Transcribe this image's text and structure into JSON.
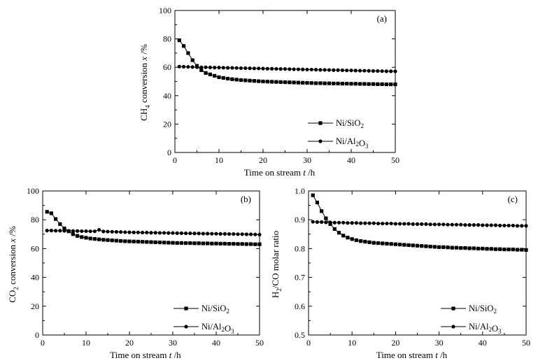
{
  "chart_data": [
    {
      "id": "a",
      "type": "line",
      "panel_label": "(a)",
      "xlabel": "Time on stream",
      "xunit_var": "t",
      "xunit": " /h",
      "ylabel_base": "CH",
      "ylabel_sub": "4",
      "ylabel_rest": " conversion",
      "yunit_var": "x",
      "yunit": " /%",
      "xlim": [
        0,
        50
      ],
      "ylim": [
        0,
        100
      ],
      "xticks": [
        0,
        10,
        20,
        30,
        40,
        50
      ],
      "yticks": [
        0,
        20,
        40,
        60,
        80,
        100
      ],
      "ytick_labels": [
        "0",
        "20",
        "40",
        "60",
        "80",
        "100"
      ],
      "legend_position": "lower-right",
      "series": [
        {
          "name": "Ni/SiO2",
          "label_parts": [
            [
              "Ni/SiO",
              false
            ],
            [
              "2",
              true
            ]
          ],
          "marker": "square",
          "x": [
            1,
            2,
            3,
            4,
            5,
            6,
            7,
            8,
            9,
            10,
            11,
            12,
            13,
            14,
            15,
            16,
            17,
            18,
            19,
            20,
            21,
            22,
            23,
            24,
            25,
            26,
            27,
            28,
            29,
            30,
            31,
            32,
            33,
            34,
            35,
            36,
            37,
            38,
            39,
            40,
            41,
            42,
            43,
            44,
            45,
            46,
            47,
            48,
            49,
            50
          ],
          "y": [
            79,
            75,
            70,
            65,
            61,
            58,
            56,
            55,
            54,
            53,
            52.5,
            52,
            51.6,
            51.3,
            51,
            50.8,
            50.6,
            50.4,
            50.2,
            50,
            49.9,
            49.8,
            49.7,
            49.6,
            49.5,
            49.4,
            49.3,
            49.2,
            49.1,
            49,
            48.9,
            48.8,
            48.8,
            48.7,
            48.7,
            48.6,
            48.6,
            48.5,
            48.5,
            48.4,
            48.4,
            48.3,
            48.3,
            48.2,
            48.2,
            48.1,
            48.1,
            48,
            48,
            48
          ]
        },
        {
          "name": "Ni/Al2O3",
          "label_parts": [
            [
              "Ni/Al",
              false
            ],
            [
              "2",
              true
            ],
            [
              "O",
              false
            ],
            [
              "3",
              true
            ]
          ],
          "marker": "circle",
          "x": [
            1,
            2,
            3,
            4,
            5,
            6,
            7,
            8,
            9,
            10,
            11,
            12,
            13,
            14,
            15,
            16,
            17,
            18,
            19,
            20,
            21,
            22,
            23,
            24,
            25,
            26,
            27,
            28,
            29,
            30,
            31,
            32,
            33,
            34,
            35,
            36,
            37,
            38,
            39,
            40,
            41,
            42,
            43,
            44,
            45,
            46,
            47,
            48,
            49,
            50
          ],
          "y": [
            60.5,
            60.4,
            60.3,
            60.2,
            60.1,
            60,
            60,
            59.9,
            59.8,
            59.8,
            59.7,
            59.6,
            59.6,
            59.5,
            59.4,
            59.4,
            59.3,
            59.2,
            59.2,
            59.1,
            59,
            59,
            58.9,
            58.8,
            58.8,
            58.7,
            58.6,
            58.6,
            58.5,
            58.4,
            58.4,
            58.3,
            58.2,
            58.2,
            58.1,
            58,
            58,
            57.9,
            57.8,
            57.8,
            57.7,
            57.6,
            57.6,
            57.5,
            57.4,
            57.4,
            57.3,
            57.2,
            57.2,
            57.1
          ]
        }
      ]
    },
    {
      "id": "b",
      "type": "line",
      "panel_label": "(b)",
      "xlabel": "Time on stream",
      "xunit_var": "t",
      "xunit": " /h",
      "ylabel_base": "CO",
      "ylabel_sub": "2",
      "ylabel_rest": " conversion",
      "yunit_var": "x",
      "yunit": " /%",
      "xlim": [
        0,
        50
      ],
      "ylim": [
        0,
        100
      ],
      "xticks": [
        0,
        10,
        20,
        30,
        40,
        50
      ],
      "yticks": [
        0,
        20,
        40,
        60,
        80,
        100
      ],
      "ytick_labels": [
        "0",
        "20",
        "40",
        "60",
        "80",
        "100"
      ],
      "legend_position": "lower-right",
      "series": [
        {
          "name": "Ni/SiO2",
          "label_parts": [
            [
              "Ni/SiO",
              false
            ],
            [
              "2",
              true
            ]
          ],
          "marker": "square",
          "x": [
            1,
            2,
            3,
            4,
            5,
            6,
            7,
            8,
            9,
            10,
            11,
            12,
            13,
            14,
            15,
            16,
            17,
            18,
            19,
            20,
            21,
            22,
            23,
            24,
            25,
            26,
            27,
            28,
            29,
            30,
            31,
            32,
            33,
            34,
            35,
            36,
            37,
            38,
            39,
            40,
            41,
            42,
            43,
            44,
            45,
            46,
            47,
            48,
            49,
            50
          ],
          "y": [
            85.5,
            84.5,
            80.5,
            77,
            74,
            72,
            70,
            68.8,
            68,
            67.5,
            67,
            66.7,
            66.4,
            66.1,
            65.9,
            65.7,
            65.5,
            65.3,
            65.1,
            65,
            64.9,
            64.8,
            64.7,
            64.6,
            64.5,
            64.4,
            64.3,
            64.2,
            64.1,
            64,
            63.9,
            63.9,
            63.8,
            63.8,
            63.7,
            63.7,
            63.6,
            63.6,
            63.5,
            63.5,
            63.4,
            63.4,
            63.3,
            63.3,
            63.2,
            63.2,
            63.1,
            63.1,
            63,
            63
          ]
        },
        {
          "name": "Ni/Al2O3",
          "label_parts": [
            [
              "Ni/Al",
              false
            ],
            [
              "2",
              true
            ],
            [
              "O",
              false
            ],
            [
              "3",
              true
            ]
          ],
          "marker": "circle",
          "x": [
            1,
            2,
            3,
            4,
            5,
            6,
            7,
            8,
            9,
            10,
            11,
            12,
            13,
            14,
            15,
            16,
            17,
            18,
            19,
            20,
            21,
            22,
            23,
            24,
            25,
            26,
            27,
            28,
            29,
            30,
            31,
            32,
            33,
            34,
            35,
            36,
            37,
            38,
            39,
            40,
            41,
            42,
            43,
            44,
            45,
            46,
            47,
            48,
            49,
            50
          ],
          "y": [
            72.5,
            72.5,
            72.4,
            72.4,
            72.3,
            72.3,
            72.2,
            72.2,
            72.1,
            72.1,
            72,
            72,
            73,
            71.9,
            71.8,
            71.7,
            71.6,
            71.5,
            71.4,
            71.3,
            71.2,
            71.2,
            71.1,
            71.1,
            71,
            71,
            70.9,
            70.9,
            70.8,
            70.8,
            70.7,
            70.7,
            70.6,
            70.6,
            70.5,
            70.5,
            70.4,
            70.4,
            70.3,
            70.3,
            70.2,
            70.2,
            70.1,
            70.1,
            70,
            70,
            69.9,
            69.9,
            69.8,
            69.7
          ]
        }
      ]
    },
    {
      "id": "c",
      "type": "line",
      "panel_label": "(c)",
      "xlabel": "Time on stream",
      "xunit_var": "t",
      "xunit": " /h",
      "ylabel_base": "H",
      "ylabel_sub": "2",
      "ylabel_rest": "/CO molar ratio",
      "yunit_var": "",
      "yunit": "",
      "xlim": [
        0,
        50
      ],
      "ylim": [
        0.5,
        1.0
      ],
      "xticks": [
        0,
        10,
        20,
        30,
        40,
        50
      ],
      "yticks": [
        0.5,
        0.6,
        0.7,
        0.8,
        0.9,
        1.0
      ],
      "ytick_labels": [
        "0.5",
        "0.6",
        "0.7",
        "0.8",
        "0.9",
        "1.0"
      ],
      "legend_position": "lower-right",
      "series": [
        {
          "name": "Ni/SiO2",
          "label_parts": [
            [
              "Ni/SiO",
              false
            ],
            [
              "2",
              true
            ]
          ],
          "marker": "square",
          "x": [
            1,
            2,
            3,
            4,
            5,
            6,
            7,
            8,
            9,
            10,
            11,
            12,
            13,
            14,
            15,
            16,
            17,
            18,
            19,
            20,
            21,
            22,
            23,
            24,
            25,
            26,
            27,
            28,
            29,
            30,
            31,
            32,
            33,
            34,
            35,
            36,
            37,
            38,
            39,
            40,
            41,
            42,
            43,
            44,
            45,
            46,
            47,
            48,
            49,
            50
          ],
          "y": [
            0.985,
            0.96,
            0.93,
            0.905,
            0.885,
            0.868,
            0.855,
            0.845,
            0.838,
            0.833,
            0.829,
            0.826,
            0.824,
            0.822,
            0.82,
            0.819,
            0.818,
            0.817,
            0.816,
            0.815,
            0.814,
            0.813,
            0.812,
            0.811,
            0.81,
            0.809,
            0.808,
            0.807,
            0.806,
            0.805,
            0.805,
            0.804,
            0.803,
            0.803,
            0.802,
            0.802,
            0.801,
            0.801,
            0.8,
            0.8,
            0.799,
            0.799,
            0.798,
            0.798,
            0.797,
            0.797,
            0.797,
            0.796,
            0.796,
            0.795
          ]
        },
        {
          "name": "Ni/Al2O3",
          "label_parts": [
            [
              "Ni/Al",
              false
            ],
            [
              "2",
              true
            ],
            [
              "O",
              false
            ],
            [
              "3",
              true
            ]
          ],
          "marker": "circle",
          "x": [
            1,
            2,
            3,
            4,
            5,
            6,
            7,
            8,
            9,
            10,
            11,
            12,
            13,
            14,
            15,
            16,
            17,
            18,
            19,
            20,
            21,
            22,
            23,
            24,
            25,
            26,
            27,
            28,
            29,
            30,
            31,
            32,
            33,
            34,
            35,
            36,
            37,
            38,
            39,
            40,
            41,
            42,
            43,
            44,
            45,
            46,
            47,
            48,
            49,
            50
          ],
          "y": [
            0.893,
            0.892,
            0.892,
            0.891,
            0.891,
            0.89,
            0.89,
            0.89,
            0.889,
            0.889,
            0.889,
            0.888,
            0.888,
            0.888,
            0.888,
            0.887,
            0.887,
            0.887,
            0.887,
            0.886,
            0.886,
            0.886,
            0.886,
            0.885,
            0.885,
            0.885,
            0.885,
            0.884,
            0.884,
            0.884,
            0.884,
            0.883,
            0.883,
            0.883,
            0.883,
            0.882,
            0.882,
            0.882,
            0.882,
            0.881,
            0.881,
            0.881,
            0.881,
            0.88,
            0.88,
            0.88,
            0.88,
            0.879,
            0.879,
            0.879
          ]
        }
      ]
    }
  ]
}
